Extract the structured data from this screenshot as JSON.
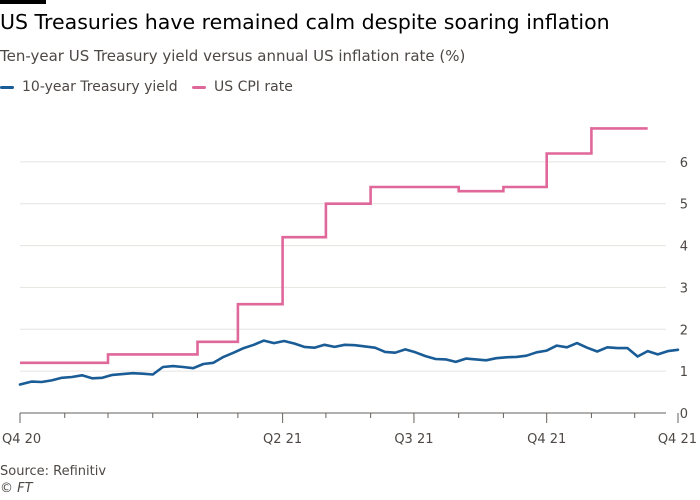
{
  "title": "US Treasuries have remained calm despite soaring inflation",
  "subtitle": "Ten-year US Treasury yield versus annual US inflation rate (%)",
  "source": "Source: Refinitiv",
  "copyright": "© FT",
  "colors": {
    "yield": "#1a5c96",
    "cpi": "#e0679a",
    "grid": "#e6e3e0",
    "axis": "#66605c",
    "text": "#4d4845"
  },
  "legend": [
    {
      "label": "10-year Treasury yield",
      "color": "#1a5c96"
    },
    {
      "label": "US CPI rate",
      "color": "#e0679a"
    }
  ],
  "chart_data": {
    "type": "line",
    "title": "US Treasuries have remained calm despite soaring inflation",
    "subtitle": "Ten-year US Treasury yield versus annual US inflation rate (%)",
    "xlabel": "",
    "ylabel": "",
    "xlim": [
      "2020-10-01",
      "2021-12-31"
    ],
    "ylim": [
      0,
      7
    ],
    "yticks": [
      0,
      1,
      2,
      3,
      4,
      5,
      6
    ],
    "y_axis_side": "right",
    "grid": true,
    "legend_position": "top-left",
    "xtick_labels": [
      {
        "label": "Q4 20",
        "date": "2020-10-01"
      },
      {
        "label": "Q2 21",
        "date": "2021-04-01"
      },
      {
        "label": "Q3 21",
        "date": "2021-07-01"
      },
      {
        "label": "Q4 21",
        "date": "2021-10-01"
      },
      {
        "label": "Q4 21",
        "date": "2021-12-31"
      }
    ],
    "minor_tick_dates": [
      "2020-11-01",
      "2020-12-01",
      "2021-01-01",
      "2021-02-01",
      "2021-03-01",
      "2021-05-01",
      "2021-06-01",
      "2021-08-01",
      "2021-09-01",
      "2021-11-01",
      "2021-12-01"
    ],
    "series": [
      {
        "name": "10-year Treasury yield",
        "style": "line",
        "x": [
          "2020-10-01",
          "2020-10-09",
          "2020-10-16",
          "2020-10-23",
          "2020-10-30",
          "2020-11-06",
          "2020-11-13",
          "2020-11-20",
          "2020-11-27",
          "2020-12-04",
          "2020-12-11",
          "2020-12-18",
          "2020-12-25",
          "2021-01-01",
          "2021-01-08",
          "2021-01-15",
          "2021-01-22",
          "2021-01-29",
          "2021-02-05",
          "2021-02-12",
          "2021-02-19",
          "2021-02-26",
          "2021-03-05",
          "2021-03-12",
          "2021-03-19",
          "2021-03-26",
          "2021-04-02",
          "2021-04-09",
          "2021-04-16",
          "2021-04-23",
          "2021-04-30",
          "2021-05-07",
          "2021-05-14",
          "2021-05-21",
          "2021-05-28",
          "2021-06-04",
          "2021-06-11",
          "2021-06-18",
          "2021-06-25",
          "2021-07-02",
          "2021-07-09",
          "2021-07-16",
          "2021-07-23",
          "2021-07-30",
          "2021-08-06",
          "2021-08-13",
          "2021-08-20",
          "2021-08-27",
          "2021-09-03",
          "2021-09-10",
          "2021-09-17",
          "2021-09-24",
          "2021-10-01",
          "2021-10-08",
          "2021-10-15",
          "2021-10-22",
          "2021-10-29",
          "2021-11-05",
          "2021-11-12",
          "2021-11-19",
          "2021-11-26",
          "2021-12-03",
          "2021-12-10",
          "2021-12-17",
          "2021-12-24",
          "2021-12-31"
        ],
        "values": [
          0.68,
          0.75,
          0.74,
          0.78,
          0.84,
          0.86,
          0.9,
          0.83,
          0.84,
          0.91,
          0.93,
          0.95,
          0.94,
          0.92,
          1.1,
          1.12,
          1.1,
          1.07,
          1.17,
          1.2,
          1.34,
          1.44,
          1.55,
          1.63,
          1.73,
          1.67,
          1.72,
          1.66,
          1.58,
          1.56,
          1.63,
          1.58,
          1.63,
          1.62,
          1.59,
          1.56,
          1.46,
          1.44,
          1.52,
          1.45,
          1.36,
          1.29,
          1.28,
          1.22,
          1.3,
          1.28,
          1.26,
          1.31,
          1.33,
          1.34,
          1.37,
          1.45,
          1.49,
          1.61,
          1.57,
          1.67,
          1.56,
          1.47,
          1.57,
          1.55,
          1.55,
          1.35,
          1.48,
          1.4,
          1.48,
          1.51
        ]
      },
      {
        "name": "US CPI rate",
        "style": "step",
        "x": [
          "2020-10-01",
          "2020-11-01",
          "2020-12-01",
          "2021-01-01",
          "2021-02-01",
          "2021-03-01",
          "2021-04-01",
          "2021-05-01",
          "2021-06-01",
          "2021-07-01",
          "2021-08-01",
          "2021-09-01",
          "2021-10-01",
          "2021-11-01",
          "2021-12-01"
        ],
        "x_end": "2021-12-10",
        "values": [
          1.2,
          1.2,
          1.4,
          1.4,
          1.7,
          2.6,
          4.2,
          5.0,
          5.4,
          5.4,
          5.3,
          5.4,
          6.2,
          6.8,
          6.8
        ]
      }
    ]
  }
}
